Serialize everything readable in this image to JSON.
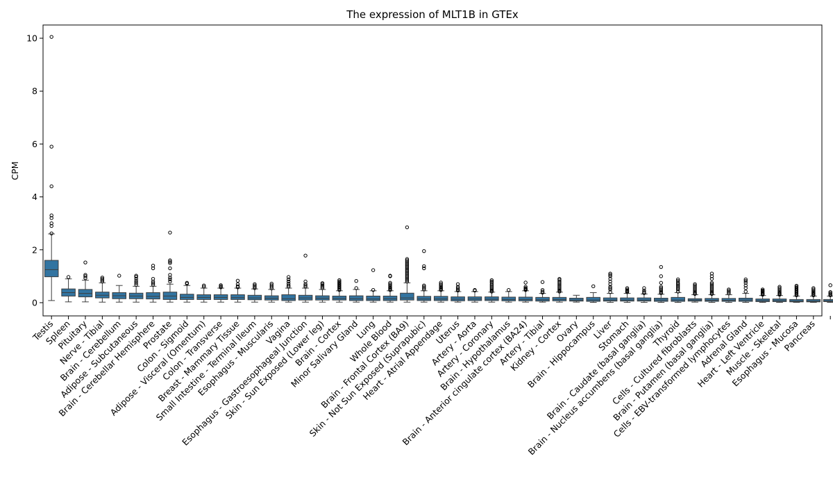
{
  "chart_data": {
    "type": "box",
    "title": "The expression of MLT1B in GTEx",
    "xlabel": "",
    "ylabel": "CPM",
    "ylim": [
      -0.5,
      10.5
    ],
    "yticks": [
      0,
      2,
      4,
      6,
      8,
      10
    ],
    "grid": false,
    "legend": "none",
    "box_color": "#3274a1",
    "categories": [
      "Testis",
      "Spleen",
      "Pituitary",
      "Nerve - Tibial",
      "Brain - Cerebellum",
      "Adipose - Subcutaneous",
      "Brain - Cerebellar Hemisphere",
      "Prostate",
      "Colon - Sigmoid",
      "Adipose - Visceral (Omentum)",
      "Colon - Transverse",
      "Breast - Mammary Tissue",
      "Small Intestine - Terminal Ileum",
      "Esophagus - Muscularis",
      "Vagina",
      "Esophagus - Gastroesophageal Junction",
      "Skin - Sun Exposed (Lower leg)",
      "Brain - Cortex",
      "Minor Salivary Gland",
      "Lung",
      "Whole Blood",
      "Brain - Frontal Cortex (BA9)",
      "Skin - Not Sun Exposed (Suprapubic)",
      "Heart - Atrial Appendage",
      "Uterus",
      "Artery - Aorta",
      "Artery - Coronary",
      "Brain - Hypothalamus",
      "Brain - Anterior cingulate cortex (BA24)",
      "Artery - Tibial",
      "Kidney - Cortex",
      "Ovary",
      "Brain - Hippocampus",
      "Liver",
      "Stomach",
      "Brain - Caudate (basal ganglia)",
      "Brain - Nucleus accumbens (basal ganglia)",
      "Thyroid",
      "Cells - Cultured fibroblasts",
      "Brain - Putamen (basal ganglia)",
      "Cells - EBV-transformed lymphocytes",
      "Adrenal Gland",
      "Heart - Left Ventricle",
      "Muscle - Skeletal",
      "Esophagus - Mucosa",
      "Pancreas"
    ],
    "boxes": [
      {
        "q1": 0.98,
        "median": 1.25,
        "q3": 1.6,
        "whislo": 0.08,
        "whishi": 2.6,
        "fliers": [
          2.62,
          2.9,
          3.0,
          3.2,
          3.3,
          4.4,
          5.9,
          10.05
        ]
      },
      {
        "q1": 0.25,
        "median": 0.38,
        "q3": 0.52,
        "whislo": 0.03,
        "whishi": 0.9,
        "fliers": [
          0.97
        ]
      },
      {
        "q1": 0.22,
        "median": 0.35,
        "q3": 0.5,
        "whislo": 0.03,
        "whishi": 0.85,
        "fliers": [
          0.93,
          1.0,
          1.05,
          1.52
        ]
      },
      {
        "q1": 0.18,
        "median": 0.28,
        "q3": 0.4,
        "whislo": 0.02,
        "whishi": 0.75,
        "fliers": [
          0.8,
          0.85,
          0.9,
          0.95
        ]
      },
      {
        "q1": 0.15,
        "median": 0.26,
        "q3": 0.38,
        "whislo": 0.02,
        "whishi": 0.65,
        "fliers": [
          1.02
        ]
      },
      {
        "q1": 0.15,
        "median": 0.25,
        "q3": 0.36,
        "whislo": 0.02,
        "whishi": 0.62,
        "fliers": [
          0.68,
          0.75,
          0.82,
          0.9,
          0.98,
          1.02
        ]
      },
      {
        "q1": 0.14,
        "median": 0.24,
        "q3": 0.38,
        "whislo": 0.02,
        "whishi": 0.62,
        "fliers": [
          0.68,
          0.74,
          0.8,
          0.9,
          1.3,
          1.4
        ]
      },
      {
        "q1": 0.12,
        "median": 0.25,
        "q3": 0.4,
        "whislo": 0.02,
        "whishi": 0.7,
        "fliers": [
          0.8,
          0.88,
          0.95,
          1.05,
          1.3,
          1.5,
          1.55,
          1.6,
          2.65
        ]
      },
      {
        "q1": 0.12,
        "median": 0.2,
        "q3": 0.32,
        "whislo": 0.02,
        "whishi": 0.65,
        "fliers": [
          0.72,
          0.75
        ]
      },
      {
        "q1": 0.12,
        "median": 0.2,
        "q3": 0.3,
        "whislo": 0.02,
        "whishi": 0.55,
        "fliers": [
          0.6,
          0.65
        ]
      },
      {
        "q1": 0.12,
        "median": 0.2,
        "q3": 0.3,
        "whislo": 0.02,
        "whishi": 0.55,
        "fliers": [
          0.58,
          0.62,
          0.66
        ]
      },
      {
        "q1": 0.12,
        "median": 0.19,
        "q3": 0.3,
        "whislo": 0.02,
        "whishi": 0.55,
        "fliers": [
          0.58,
          0.62,
          0.7,
          0.83
        ]
      },
      {
        "q1": 0.11,
        "median": 0.18,
        "q3": 0.28,
        "whislo": 0.02,
        "whishi": 0.52,
        "fliers": [
          0.55,
          0.6,
          0.65,
          0.7
        ]
      },
      {
        "q1": 0.1,
        "median": 0.17,
        "q3": 0.26,
        "whislo": 0.02,
        "whishi": 0.5,
        "fliers": [
          0.54,
          0.6,
          0.66,
          0.72
        ]
      },
      {
        "q1": 0.08,
        "median": 0.15,
        "q3": 0.3,
        "whislo": 0.02,
        "whishi": 0.55,
        "fliers": [
          0.6,
          0.65,
          0.72,
          0.8,
          0.88,
          0.97
        ]
      },
      {
        "q1": 0.1,
        "median": 0.18,
        "q3": 0.28,
        "whislo": 0.02,
        "whishi": 0.55,
        "fliers": [
          0.6,
          0.65,
          0.7,
          0.8,
          1.78
        ]
      },
      {
        "q1": 0.1,
        "median": 0.17,
        "q3": 0.26,
        "whislo": 0.02,
        "whishi": 0.5,
        "fliers": [
          0.55,
          0.6,
          0.65,
          0.7,
          0.74
        ]
      },
      {
        "q1": 0.1,
        "median": 0.16,
        "q3": 0.25,
        "whislo": 0.02,
        "whishi": 0.45,
        "fliers": [
          0.48,
          0.52,
          0.56,
          0.6,
          0.64,
          0.68,
          0.72,
          0.76,
          0.8,
          0.85
        ]
      },
      {
        "q1": 0.08,
        "median": 0.15,
        "q3": 0.26,
        "whislo": 0.02,
        "whishi": 0.5,
        "fliers": [
          0.55,
          0.82
        ]
      },
      {
        "q1": 0.08,
        "median": 0.14,
        "q3": 0.25,
        "whislo": 0.02,
        "whishi": 0.45,
        "fliers": [
          0.48,
          1.23
        ]
      },
      {
        "q1": 0.08,
        "median": 0.15,
        "q3": 0.25,
        "whislo": 0.02,
        "whishi": 0.45,
        "fliers": [
          0.48,
          0.52,
          0.56,
          0.6,
          0.65,
          0.7,
          0.75,
          1.0,
          1.02
        ]
      },
      {
        "q1": 0.1,
        "median": 0.18,
        "q3": 0.36,
        "whislo": 0.02,
        "whishi": 0.75,
        "fliers": [
          0.8,
          0.85,
          0.9,
          0.95,
          1.0,
          1.05,
          1.1,
          1.15,
          1.2,
          1.25,
          1.3,
          1.35,
          1.4,
          1.45,
          1.5,
          1.55,
          1.6,
          1.65,
          2.85
        ]
      },
      {
        "q1": 0.08,
        "median": 0.14,
        "q3": 0.24,
        "whislo": 0.02,
        "whishi": 0.45,
        "fliers": [
          0.5,
          0.55,
          0.6,
          0.65,
          1.3,
          1.38,
          1.95
        ]
      },
      {
        "q1": 0.08,
        "median": 0.14,
        "q3": 0.24,
        "whislo": 0.02,
        "whishi": 0.45,
        "fliers": [
          0.48,
          0.52,
          0.56,
          0.6,
          0.65,
          0.7,
          0.76
        ]
      },
      {
        "q1": 0.07,
        "median": 0.13,
        "q3": 0.22,
        "whislo": 0.02,
        "whishi": 0.42,
        "fliers": [
          0.46,
          0.5,
          0.55,
          0.6,
          0.7
        ]
      },
      {
        "q1": 0.08,
        "median": 0.14,
        "q3": 0.22,
        "whislo": 0.02,
        "whishi": 0.42,
        "fliers": [
          0.46,
          0.48
        ]
      },
      {
        "q1": 0.08,
        "median": 0.13,
        "q3": 0.22,
        "whislo": 0.02,
        "whishi": 0.4,
        "fliers": [
          0.42,
          0.46,
          0.5,
          0.55,
          0.6,
          0.65,
          0.7,
          0.76,
          0.8,
          0.85
        ]
      },
      {
        "q1": 0.07,
        "median": 0.12,
        "q3": 0.21,
        "whislo": 0.02,
        "whishi": 0.42,
        "fliers": [
          0.48
        ]
      },
      {
        "q1": 0.07,
        "median": 0.12,
        "q3": 0.21,
        "whislo": 0.02,
        "whishi": 0.45,
        "fliers": [
          0.48,
          0.5,
          0.52,
          0.55,
          0.6,
          0.76
        ]
      },
      {
        "q1": 0.06,
        "median": 0.11,
        "q3": 0.2,
        "whislo": 0.02,
        "whishi": 0.35,
        "fliers": [
          0.38,
          0.42,
          0.48,
          0.78
        ]
      },
      {
        "q1": 0.07,
        "median": 0.12,
        "q3": 0.2,
        "whislo": 0.02,
        "whishi": 0.4,
        "fliers": [
          0.42,
          0.46,
          0.5,
          0.55,
          0.6,
          0.65,
          0.7,
          0.75,
          0.8,
          0.86,
          0.9
        ]
      },
      {
        "q1": 0.06,
        "median": 0.1,
        "q3": 0.17,
        "whislo": 0.02,
        "whishi": 0.28,
        "fliers": []
      },
      {
        "q1": 0.05,
        "median": 0.1,
        "q3": 0.2,
        "whislo": 0.01,
        "whishi": 0.38,
        "fliers": [
          0.62
        ]
      },
      {
        "q1": 0.06,
        "median": 0.1,
        "q3": 0.18,
        "whislo": 0.01,
        "whishi": 0.35,
        "fliers": [
          0.4,
          0.5,
          0.55,
          0.6,
          0.7,
          0.8,
          0.9,
          1.0,
          1.05,
          1.1
        ]
      },
      {
        "q1": 0.06,
        "median": 0.1,
        "q3": 0.18,
        "whislo": 0.01,
        "whishi": 0.35,
        "fliers": [
          0.4,
          0.43,
          0.46,
          0.5,
          0.55
        ]
      },
      {
        "q1": 0.06,
        "median": 0.1,
        "q3": 0.18,
        "whislo": 0.01,
        "whishi": 0.33,
        "fliers": [
          0.36,
          0.4,
          0.46,
          0.55
        ]
      },
      {
        "q1": 0.05,
        "median": 0.1,
        "q3": 0.17,
        "whislo": 0.01,
        "whishi": 0.32,
        "fliers": [
          0.36,
          0.4,
          0.45,
          0.5,
          0.55,
          0.6,
          0.75,
          1.0,
          1.35
        ]
      },
      {
        "q1": 0.05,
        "median": 0.1,
        "q3": 0.2,
        "whislo": 0.01,
        "whishi": 0.38,
        "fliers": [
          0.42,
          0.5,
          0.55,
          0.6,
          0.65,
          0.7,
          0.75,
          0.82,
          0.88
        ]
      },
      {
        "q1": 0.06,
        "median": 0.1,
        "q3": 0.15,
        "whislo": 0.02,
        "whishi": 0.3,
        "fliers": [
          0.33,
          0.36,
          0.4,
          0.45,
          0.5,
          0.55,
          0.6,
          0.65,
          0.7
        ]
      },
      {
        "q1": 0.05,
        "median": 0.09,
        "q3": 0.16,
        "whislo": 0.01,
        "whishi": 0.3,
        "fliers": [
          0.33,
          0.36,
          0.4,
          0.45,
          0.5,
          0.55,
          0.6,
          0.65,
          0.7,
          0.75,
          0.9,
          1.0,
          1.1
        ]
      },
      {
        "q1": 0.05,
        "median": 0.09,
        "q3": 0.16,
        "whislo": 0.01,
        "whishi": 0.3,
        "fliers": [
          0.35,
          0.4,
          0.45,
          0.5
        ]
      },
      {
        "q1": 0.05,
        "median": 0.1,
        "q3": 0.17,
        "whislo": 0.01,
        "whishi": 0.35,
        "fliers": [
          0.42,
          0.55,
          0.65,
          0.75,
          0.82,
          0.88
        ]
      },
      {
        "q1": 0.04,
        "median": 0.08,
        "q3": 0.14,
        "whislo": 0.01,
        "whishi": 0.27,
        "fliers": [
          0.3,
          0.33,
          0.36,
          0.4,
          0.43,
          0.46,
          0.5
        ]
      },
      {
        "q1": 0.04,
        "median": 0.08,
        "q3": 0.14,
        "whislo": 0.01,
        "whishi": 0.27,
        "fliers": [
          0.3,
          0.33,
          0.36,
          0.4,
          0.45,
          0.5,
          0.55,
          0.6
        ]
      },
      {
        "q1": 0.03,
        "median": 0.06,
        "q3": 0.12,
        "whislo": 0.01,
        "whishi": 0.25,
        "fliers": [
          0.28,
          0.32,
          0.36,
          0.4,
          0.44,
          0.48,
          0.52,
          0.56,
          0.6,
          0.64
        ]
      },
      {
        "q1": 0.03,
        "median": 0.06,
        "q3": 0.12,
        "whislo": 0.01,
        "whishi": 0.25,
        "fliers": [
          0.28,
          0.32,
          0.36,
          0.4,
          0.45,
          0.5,
          0.55
        ]
      },
      {
        "q1": 0.04,
        "median": 0.07,
        "q3": 0.12,
        "whislo": 0.01,
        "whishi": 0.25,
        "fliers": [
          0.28,
          0.32,
          0.36,
          0.4,
          0.66
        ]
      }
    ]
  }
}
